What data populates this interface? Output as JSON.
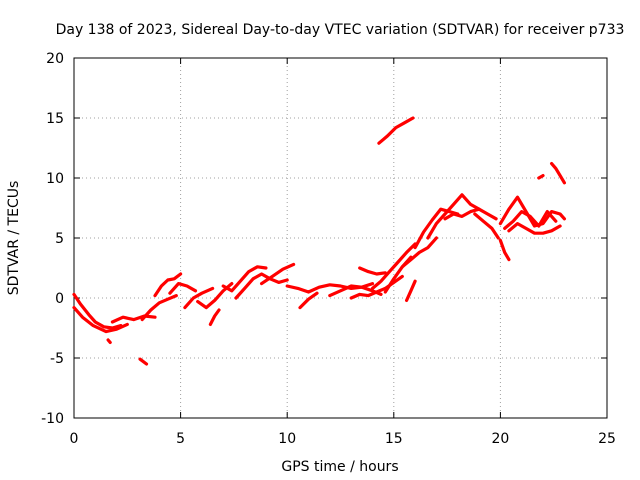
{
  "chart_data": {
    "type": "scatter",
    "title": "Day 138 of 2023, Sidereal Day-to-day VTEC variation (SDTVAR) for receiver p733",
    "xlabel": "GPS time / hours",
    "ylabel": "SDTVAR / TECUs",
    "xlim": [
      0,
      25
    ],
    "ylim": [
      -10,
      20
    ],
    "xticks": [
      "0",
      "5",
      "10",
      "15",
      "20",
      "25"
    ],
    "yticks": [
      "-10",
      "-5",
      "0",
      "5",
      "10",
      "15",
      "20"
    ],
    "grid": true,
    "color": "#ff0000",
    "series": [
      {
        "name": "s1",
        "x": [
          0.0,
          0.3,
          0.7,
          1.0,
          1.4,
          1.8,
          2.2
        ],
        "y": [
          0.3,
          -0.5,
          -1.4,
          -2.0,
          -2.4,
          -2.5,
          -2.3
        ]
      },
      {
        "name": "s2",
        "x": [
          0.0,
          0.4,
          0.9,
          1.5,
          2.0,
          2.5
        ],
        "y": [
          -0.8,
          -1.6,
          -2.3,
          -2.8,
          -2.6,
          -2.2
        ]
      },
      {
        "name": "s3",
        "x": [
          1.6,
          1.7
        ],
        "y": [
          -3.5,
          -3.7
        ]
      },
      {
        "name": "s4",
        "x": [
          1.8,
          2.3,
          2.8,
          3.3,
          3.8
        ],
        "y": [
          -2.0,
          -1.6,
          -1.8,
          -1.5,
          -1.6
        ]
      },
      {
        "name": "s5",
        "x": [
          3.1,
          3.4
        ],
        "y": [
          -5.1,
          -5.5
        ]
      },
      {
        "name": "s6",
        "x": [
          3.2,
          3.6,
          4.0,
          4.4,
          4.8
        ],
        "y": [
          -1.8,
          -1.0,
          -0.4,
          -0.1,
          0.2
        ]
      },
      {
        "name": "s7",
        "x": [
          3.8,
          4.1,
          4.4,
          4.7,
          5.0
        ],
        "y": [
          0.2,
          1.0,
          1.5,
          1.6,
          2.0
        ]
      },
      {
        "name": "s8",
        "x": [
          4.5,
          4.9,
          5.3,
          5.7
        ],
        "y": [
          0.4,
          1.2,
          1.0,
          0.6
        ]
      },
      {
        "name": "s9",
        "x": [
          5.2,
          5.6,
          6.0,
          6.5
        ],
        "y": [
          -0.8,
          0.0,
          0.4,
          0.8
        ]
      },
      {
        "name": "s10",
        "x": [
          5.8,
          6.2,
          6.6,
          7.0,
          7.4
        ],
        "y": [
          -0.3,
          -0.8,
          -0.2,
          0.6,
          1.2
        ]
      },
      {
        "name": "s11",
        "x": [
          6.4,
          6.6,
          6.8
        ],
        "y": [
          -2.2,
          -1.5,
          -1.0
        ]
      },
      {
        "name": "s12",
        "x": [
          7.0,
          7.4,
          7.8,
          8.2,
          8.6,
          9.0
        ],
        "y": [
          1.0,
          0.6,
          1.4,
          2.2,
          2.6,
          2.5
        ]
      },
      {
        "name": "s13",
        "x": [
          7.6,
          8.0,
          8.4,
          8.8,
          9.2,
          9.6,
          10.0
        ],
        "y": [
          0.0,
          0.8,
          1.6,
          2.0,
          1.6,
          1.3,
          1.5
        ]
      },
      {
        "name": "s14",
        "x": [
          8.8,
          9.3,
          9.8,
          10.3
        ],
        "y": [
          1.2,
          1.8,
          2.4,
          2.8
        ]
      },
      {
        "name": "s15",
        "x": [
          10.0,
          10.5,
          11.0,
          11.5,
          12.0,
          12.5,
          13.0,
          13.5,
          14.0
        ],
        "y": [
          1.0,
          0.8,
          0.5,
          0.9,
          1.1,
          1.0,
          0.8,
          0.9,
          1.2
        ]
      },
      {
        "name": "s16",
        "x": [
          10.6,
          11.0,
          11.4
        ],
        "y": [
          -0.8,
          -0.1,
          0.4
        ]
      },
      {
        "name": "s17",
        "x": [
          12.0,
          12.5,
          13.0,
          13.5,
          14.0,
          14.4
        ],
        "y": [
          0.2,
          0.6,
          1.0,
          0.9,
          0.6,
          0.3
        ]
      },
      {
        "name": "s18",
        "x": [
          13.0,
          13.4,
          13.8,
          14.2,
          14.6,
          15.0,
          15.4
        ],
        "y": [
          0.0,
          0.3,
          0.2,
          0.5,
          0.8,
          1.3,
          1.8
        ]
      },
      {
        "name": "s19",
        "x": [
          13.4,
          13.8,
          14.2,
          14.6
        ],
        "y": [
          2.5,
          2.2,
          2.0,
          2.1
        ]
      },
      {
        "name": "s20",
        "x": [
          14.0,
          14.4,
          14.8,
          15.2,
          15.6,
          16.0
        ],
        "y": [
          0.8,
          1.4,
          2.2,
          3.0,
          3.8,
          4.5
        ]
      },
      {
        "name": "s21",
        "x": [
          14.6,
          15.0,
          15.4,
          15.8
        ],
        "y": [
          0.5,
          1.6,
          2.6,
          3.4
        ]
      },
      {
        "name": "s22",
        "x": [
          14.3,
          14.7,
          15.1,
          15.5,
          15.9
        ],
        "y": [
          12.9,
          13.5,
          14.2,
          14.6,
          15.0
        ]
      },
      {
        "name": "s23",
        "x": [
          15.6,
          15.8,
          16.0
        ],
        "y": [
          -0.2,
          0.6,
          1.4
        ]
      },
      {
        "name": "s24",
        "x": [
          15.4,
          15.8,
          16.2,
          16.6,
          17.0
        ],
        "y": [
          2.6,
          3.2,
          3.8,
          4.2,
          5.0
        ]
      },
      {
        "name": "s25",
        "x": [
          16.0,
          16.4,
          16.8,
          17.2,
          17.6,
          18.0
        ],
        "y": [
          4.2,
          5.5,
          6.5,
          7.4,
          7.2,
          7.0
        ]
      },
      {
        "name": "s26",
        "x": [
          16.6,
          17.0,
          17.4,
          17.8,
          18.2,
          18.6,
          19.0
        ],
        "y": [
          5.0,
          6.2,
          7.0,
          7.8,
          8.6,
          7.8,
          7.4
        ]
      },
      {
        "name": "s27",
        "x": [
          17.4,
          17.8,
          18.2,
          18.6,
          19.0,
          19.4,
          19.8
        ],
        "y": [
          6.6,
          7.0,
          6.8,
          7.2,
          7.4,
          7.0,
          6.6
        ]
      },
      {
        "name": "s28",
        "x": [
          18.8,
          19.2,
          19.6,
          19.9
        ],
        "y": [
          7.0,
          6.4,
          5.8,
          5.0
        ]
      },
      {
        "name": "s29",
        "x": [
          20.0,
          20.2,
          20.4
        ],
        "y": [
          4.8,
          3.8,
          3.2
        ]
      },
      {
        "name": "s30",
        "x": [
          20.0,
          20.4,
          20.8,
          21.2,
          21.6,
          22.0,
          22.4,
          22.8,
          23.0
        ],
        "y": [
          6.2,
          7.4,
          8.4,
          7.2,
          6.0,
          6.2,
          7.2,
          7.0,
          6.6
        ]
      },
      {
        "name": "s31",
        "x": [
          20.2,
          20.6,
          21.0,
          21.4,
          21.8,
          22.2,
          22.6
        ],
        "y": [
          5.8,
          6.4,
          7.2,
          6.8,
          6.0,
          7.2,
          6.4
        ]
      },
      {
        "name": "s32",
        "x": [
          20.4,
          20.8,
          21.2,
          21.6,
          22.0,
          22.4,
          22.8
        ],
        "y": [
          5.6,
          6.2,
          5.8,
          5.4,
          5.4,
          5.6,
          6.0
        ]
      },
      {
        "name": "s33",
        "x": [
          21.8,
          22.0
        ],
        "y": [
          10.0,
          10.2
        ]
      },
      {
        "name": "s34",
        "x": [
          22.4,
          22.6,
          22.8,
          23.0
        ],
        "y": [
          11.2,
          10.8,
          10.2,
          9.6
        ]
      }
    ]
  }
}
